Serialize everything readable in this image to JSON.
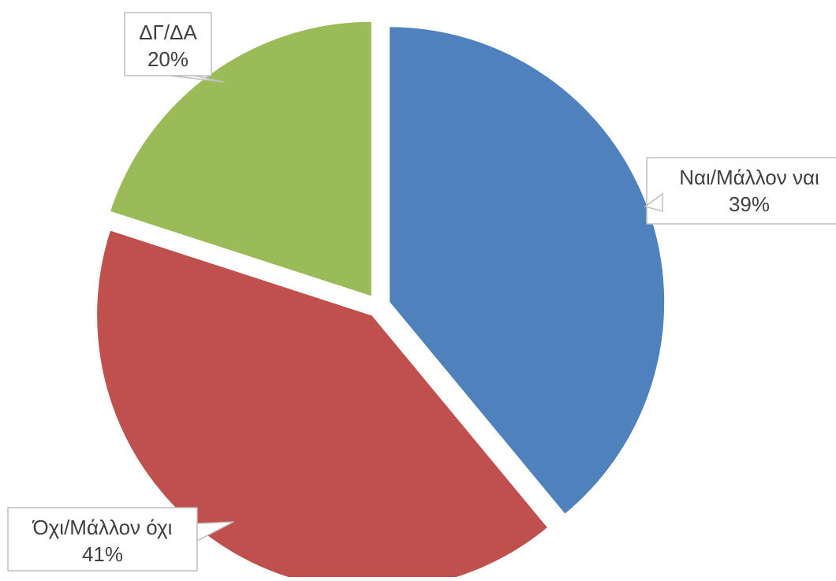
{
  "chart_data": {
    "type": "pie",
    "title": "",
    "slices": [
      {
        "label": "Ναι/Μάλλον ναι",
        "value": 39,
        "value_label": "39%",
        "color": "#4F81BD"
      },
      {
        "label": "Όχι/Μάλλον όχι",
        "value": 41,
        "value_label": "41%",
        "color": "#C0504D"
      },
      {
        "label": "ΔΓ/ΔΑ",
        "value": 20,
        "value_label": "20%",
        "color": "#9BBB59"
      }
    ],
    "start_angle_deg": 0,
    "direction": "clockwise",
    "legend": "none",
    "data_labels": "callouts-outside"
  }
}
